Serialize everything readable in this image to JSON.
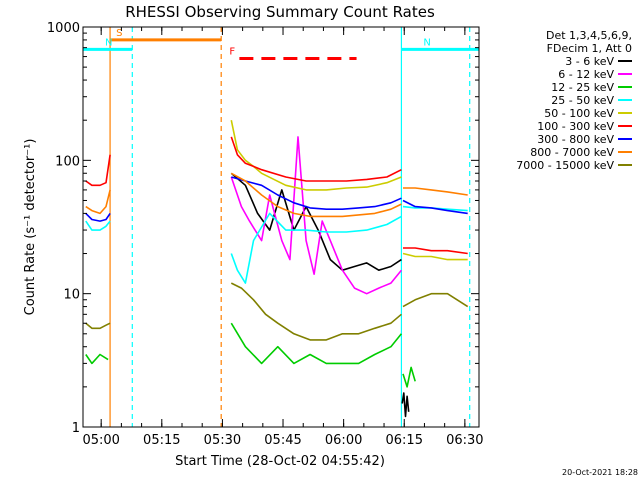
{
  "chart_data": {
    "type": "line",
    "title": "RHESSI Observing Summary Count Rates",
    "xlabel": "Start Time (28-Oct-02 04:55:42)",
    "ylabel": "Count Rate (s⁻¹ detector⁻¹)",
    "yscale": "log",
    "ylim": [
      1,
      1000
    ],
    "xlim": [
      -0.2,
      97.8
    ],
    "x_unit": "minutes after 04:55:42",
    "y_ticks": [
      {
        "value": 1,
        "label": "1"
      },
      {
        "value": 10,
        "label": "10"
      },
      {
        "value": 100,
        "label": "100"
      },
      {
        "value": 1000,
        "label": "1000"
      }
    ],
    "x_ticks": [
      {
        "value": 4.3,
        "label": "05:00"
      },
      {
        "value": 19.3,
        "label": "05:15"
      },
      {
        "value": 34.3,
        "label": "05:30"
      },
      {
        "value": 49.3,
        "label": "05:45"
      },
      {
        "value": 64.3,
        "label": "06:00"
      },
      {
        "value": 79.3,
        "label": "06:15"
      },
      {
        "value": 94.3,
        "label": "06:30"
      }
    ],
    "legend": {
      "placement": "right",
      "header": [
        "Det 1,3,4,5,6,9,",
        "FDecim 1, Att 0"
      ]
    },
    "flags": [
      {
        "name": "S",
        "color": "#ff7f00",
        "x_start": 6.5,
        "x_end": 34.0,
        "level": 800
      },
      {
        "name": "N",
        "color": "#00ffff",
        "x_start": -0.2,
        "x_end": 12.0,
        "level": 680
      },
      {
        "name": "N",
        "color": "#00ffff",
        "x_start": 78.6,
        "x_end": 97.8,
        "level": 680
      },
      {
        "name": "F",
        "color": "#ff0000",
        "x_start": 38.5,
        "x_end": 67.5,
        "level": 580,
        "dashed": true
      }
    ],
    "vlines": [
      {
        "x": 6.5,
        "color": "#ff7f00",
        "dashed": false
      },
      {
        "x": 12.0,
        "color": "#00ffff",
        "dashed": true
      },
      {
        "x": 34.0,
        "color": "#ff7f00",
        "dashed": true
      },
      {
        "x": 78.6,
        "color": "#00ffff",
        "dashed": false
      },
      {
        "x": 95.5,
        "color": "#00ffff",
        "dashed": true
      }
    ],
    "series": [
      {
        "name": "3 - 6 keV",
        "color": "#000000",
        "segments": [
          {
            "x": [
              36.5,
              40,
              43,
              46,
              49,
              52,
              55,
              58,
              61,
              64,
              67,
              70,
              73,
              76,
              78.6
            ],
            "y": [
              80,
              65,
              40,
              30,
              60,
              30,
              45,
              30,
              18,
              15,
              16,
              17,
              15,
              16,
              18
            ]
          },
          {
            "x": [
              78.8,
              79.2,
              79.6,
              80.0,
              80.4
            ],
            "y": [
              1.5,
              1.8,
              1.2,
              1.7,
              1.3
            ]
          }
        ]
      },
      {
        "name": "6 - 12 keV",
        "color": "#ff00ff",
        "segments": [
          {
            "x": [
              36.5,
              39,
              41,
              44,
              46,
              49,
              51,
              53,
              55,
              57,
              59,
              61,
              64,
              67,
              70,
              73,
              76,
              78.6
            ],
            "y": [
              75,
              45,
              35,
              25,
              55,
              25,
              18,
              150,
              25,
              14,
              35,
              25,
              15,
              11,
              10,
              11,
              12,
              15
            ]
          }
        ]
      },
      {
        "name": "12 - 25 keV",
        "color": "#00cc00",
        "segments": [
          {
            "x": [
              0.5,
              2,
              4,
              6
            ],
            "y": [
              3.5,
              3,
              3.5,
              3.2
            ]
          },
          {
            "x": [
              36.5,
              40,
              44,
              48,
              52,
              56,
              60,
              64,
              68,
              72,
              76,
              78.6
            ],
            "y": [
              6,
              4,
              3,
              4,
              3,
              3.5,
              3,
              3,
              3,
              3.5,
              4,
              5
            ]
          },
          {
            "x": [
              79,
              80,
              81,
              82
            ],
            "y": [
              2.5,
              2,
              2.8,
              2.2
            ]
          }
        ]
      },
      {
        "name": "25 - 50 keV",
        "color": "#00ffff",
        "segments": [
          {
            "x": [
              0.5,
              2,
              4,
              5.5,
              6.5
            ],
            "y": [
              35,
              30,
              30,
              32,
              35
            ]
          },
          {
            "x": [
              36.5,
              38,
              40,
              42,
              46,
              50,
              55,
              60,
              65,
              70,
              75,
              78.6
            ],
            "y": [
              20,
              15,
              12,
              25,
              40,
              30,
              30,
              29,
              29,
              30,
              33,
              38
            ]
          },
          {
            "x": [
              79,
              82,
              86,
              90,
              95
            ],
            "y": [
              45,
              44,
              44,
              43,
              42
            ]
          }
        ]
      },
      {
        "name": "50 - 100 keV",
        "color": "#cccc00",
        "segments": [
          {
            "x": [
              36.5,
              38,
              40,
              42,
              44,
              50,
              55,
              60,
              65,
              70,
              75,
              78.6
            ],
            "y": [
              200,
              120,
              100,
              90,
              80,
              65,
              60,
              60,
              62,
              63,
              68,
              75
            ]
          },
          {
            "x": [
              79,
              82,
              86,
              90,
              95
            ],
            "y": [
              20,
              19,
              19,
              18,
              18
            ]
          }
        ]
      },
      {
        "name": "100 - 300 keV",
        "color": "#ff0000",
        "segments": [
          {
            "x": [
              0.5,
              2,
              4,
              5.5,
              6.5
            ],
            "y": [
              70,
              65,
              65,
              68,
              110
            ]
          },
          {
            "x": [
              36.5,
              38,
              40,
              42,
              44,
              50,
              55,
              60,
              65,
              70,
              75,
              78.6
            ],
            "y": [
              150,
              110,
              95,
              90,
              85,
              75,
              70,
              70,
              70,
              72,
              75,
              85
            ]
          },
          {
            "x": [
              79,
              82,
              86,
              90,
              95
            ],
            "y": [
              22,
              22,
              21,
              21,
              20
            ]
          }
        ]
      },
      {
        "name": "300 - 800 keV",
        "color": "#0000ff",
        "segments": [
          {
            "x": [
              0.5,
              2,
              4,
              5.5,
              6.5
            ],
            "y": [
              40,
              36,
              35,
              36,
              40
            ]
          },
          {
            "x": [
              36.5,
              40,
              44,
              48,
              52,
              56,
              60,
              64,
              68,
              72,
              76,
              78.6
            ],
            "y": [
              75,
              70,
              65,
              55,
              48,
              44,
              43,
              43,
              44,
              45,
              48,
              52
            ]
          },
          {
            "x": [
              79,
              82,
              86,
              90,
              95
            ],
            "y": [
              50,
              45,
              44,
              42,
              40
            ]
          }
        ]
      },
      {
        "name": "800 - 7000 keV",
        "color": "#ff7f00",
        "segments": [
          {
            "x": [
              0.5,
              2,
              4,
              5.5,
              6.5
            ],
            "y": [
              45,
              42,
              40,
              45,
              60
            ]
          },
          {
            "x": [
              36.5,
              40,
              44,
              48,
              52,
              56,
              60,
              64,
              68,
              72,
              76,
              78.6
            ],
            "y": [
              80,
              70,
              55,
              45,
              40,
              38,
              38,
              38,
              39,
              40,
              43,
              47
            ]
          },
          {
            "x": [
              79,
              82,
              86,
              90,
              95
            ],
            "y": [
              62,
              62,
              60,
              58,
              55
            ]
          }
        ]
      },
      {
        "name": "7000 - 15000 keV",
        "color": "#808000",
        "segments": [
          {
            "x": [
              0.5,
              2,
              4,
              5.5,
              6.5
            ],
            "y": [
              6,
              5.5,
              5.5,
              5.8,
              6
            ]
          },
          {
            "x": [
              36.5,
              39,
              42,
              45,
              48,
              52,
              56,
              60,
              64,
              68,
              72,
              76,
              78.6
            ],
            "y": [
              12,
              11,
              9,
              7,
              6,
              5,
              4.5,
              4.5,
              5,
              5,
              5.5,
              6,
              7
            ]
          },
          {
            "x": [
              79,
              82,
              86,
              90,
              95
            ],
            "y": [
              8,
              9,
              10,
              10,
              8
            ]
          }
        ]
      }
    ]
  },
  "timestamp": "20-Oct-2021 18:28"
}
